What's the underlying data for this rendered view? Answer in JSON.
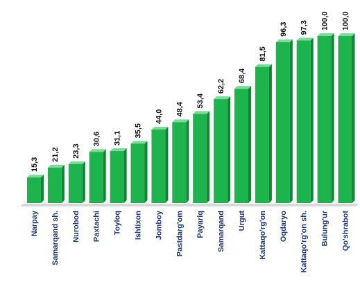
{
  "chart_data": {
    "type": "bar",
    "categories": [
      "Narpay",
      "Samarqand sh.",
      "Nurobod",
      "Paxtachi",
      "Toyloq",
      "Ishtixon",
      "Jomboy",
      "Pastdarg'om",
      "Payariq",
      "Samarqand",
      "Urgut",
      "Kattaqo'rg'on",
      "Oqdaryo",
      "Kattaqo'rg'on sh.",
      "Bulung'ur",
      "Qo'shrabot"
    ],
    "values": [
      15.3,
      21.2,
      23.3,
      30.6,
      31.1,
      35.5,
      44.0,
      48.4,
      53.4,
      62.2,
      68.4,
      81.5,
      96.3,
      97.3,
      100.0,
      100.0
    ],
    "value_labels": [
      "15,3",
      "21,2",
      "23,3",
      "30,6",
      "31,1",
      "35,5",
      "44,0",
      "48,4",
      "53,4",
      "62,2",
      "68,4",
      "81,5",
      "96,3",
      "97,3",
      "100,0",
      "100,0"
    ],
    "ylim": [
      0,
      100
    ],
    "grid": false,
    "legend": "none",
    "colors": {
      "bar_front": "#1db44e",
      "bar_top": "#7fd99a",
      "bar_side": "#138236",
      "floor": "#d9d9d9",
      "value_label": "#111111",
      "category_label": "#1f3a78"
    }
  }
}
